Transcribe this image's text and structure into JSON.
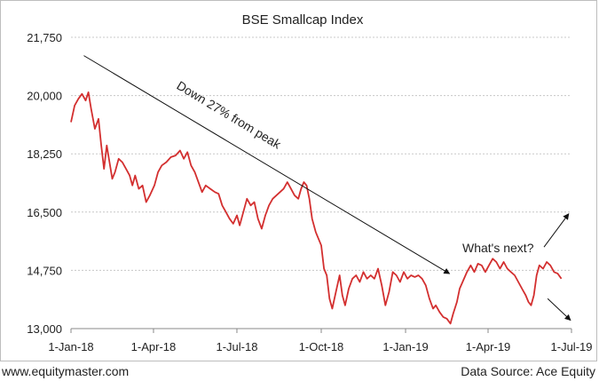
{
  "footer": {
    "left": "www.equitymaster.com",
    "right": "Data Source: Ace Equity"
  },
  "chart_data": {
    "type": "line",
    "title": "BSE Smallcap Index",
    "xlabel": "",
    "ylabel": "",
    "y_ticks": [
      "13,000",
      "14,750",
      "16,500",
      "18,250",
      "20,000",
      "21,750"
    ],
    "y_tick_values": [
      13000,
      14750,
      16500,
      18250,
      20000,
      21750
    ],
    "ylim": [
      13000,
      21750
    ],
    "x_ticks": [
      "1-Jan-18",
      "1-Apr-18",
      "1-Jul-18",
      "1-Oct-18",
      "1-Jan-19",
      "1-Apr-19",
      "1-Jul-19"
    ],
    "x_tick_dates": [
      "2018-01-01",
      "2018-04-01",
      "2018-07-01",
      "2018-10-01",
      "2019-01-01",
      "2019-04-01",
      "2019-07-01"
    ],
    "xlim": [
      "2018-01-01",
      "2019-07-01"
    ],
    "grid": "horizontal",
    "line_color": "#d32f2f",
    "series": [
      {
        "points": [
          [
            "2018-01-01",
            19200
          ],
          [
            "2018-01-05",
            19700
          ],
          [
            "2018-01-09",
            19900
          ],
          [
            "2018-01-13",
            20050
          ],
          [
            "2018-01-17",
            19850
          ],
          [
            "2018-01-20",
            20100
          ],
          [
            "2018-01-23",
            19600
          ],
          [
            "2018-01-27",
            19000
          ],
          [
            "2018-01-31",
            19300
          ],
          [
            "2018-02-03",
            18500
          ],
          [
            "2018-02-06",
            17800
          ],
          [
            "2018-02-09",
            18500
          ],
          [
            "2018-02-12",
            18000
          ],
          [
            "2018-02-15",
            17500
          ],
          [
            "2018-02-18",
            17700
          ],
          [
            "2018-02-22",
            18100
          ],
          [
            "2018-02-26",
            18000
          ],
          [
            "2018-03-02",
            17800
          ],
          [
            "2018-03-06",
            17600
          ],
          [
            "2018-03-09",
            17300
          ],
          [
            "2018-03-12",
            17600
          ],
          [
            "2018-03-16",
            17200
          ],
          [
            "2018-03-20",
            17300
          ],
          [
            "2018-03-24",
            16800
          ],
          [
            "2018-03-28",
            17000
          ],
          [
            "2018-04-02",
            17300
          ],
          [
            "2018-04-06",
            17700
          ],
          [
            "2018-04-10",
            17900
          ],
          [
            "2018-04-15",
            18000
          ],
          [
            "2018-04-20",
            18150
          ],
          [
            "2018-04-25",
            18200
          ],
          [
            "2018-04-30",
            18350
          ],
          [
            "2018-05-04",
            18100
          ],
          [
            "2018-05-08",
            18300
          ],
          [
            "2018-05-12",
            17900
          ],
          [
            "2018-05-16",
            17700
          ],
          [
            "2018-05-20",
            17400
          ],
          [
            "2018-05-24",
            17100
          ],
          [
            "2018-05-28",
            17300
          ],
          [
            "2018-06-02",
            17200
          ],
          [
            "2018-06-07",
            17100
          ],
          [
            "2018-06-11",
            17050
          ],
          [
            "2018-06-15",
            16700
          ],
          [
            "2018-06-19",
            16500
          ],
          [
            "2018-06-23",
            16300
          ],
          [
            "2018-06-27",
            16150
          ],
          [
            "2018-07-01",
            16400
          ],
          [
            "2018-07-04",
            16100
          ],
          [
            "2018-07-08",
            16500
          ],
          [
            "2018-07-12",
            16900
          ],
          [
            "2018-07-16",
            16700
          ],
          [
            "2018-07-20",
            16800
          ],
          [
            "2018-07-24",
            16300
          ],
          [
            "2018-07-28",
            16000
          ],
          [
            "2018-08-01",
            16400
          ],
          [
            "2018-08-05",
            16700
          ],
          [
            "2018-08-09",
            16900
          ],
          [
            "2018-08-13",
            17000
          ],
          [
            "2018-08-17",
            17100
          ],
          [
            "2018-08-21",
            17200
          ],
          [
            "2018-08-25",
            17400
          ],
          [
            "2018-08-29",
            17200
          ],
          [
            "2018-09-02",
            17000
          ],
          [
            "2018-09-06",
            16900
          ],
          [
            "2018-09-09",
            17200
          ],
          [
            "2018-09-12",
            17400
          ],
          [
            "2018-09-15",
            17300
          ],
          [
            "2018-09-18",
            16900
          ],
          [
            "2018-09-21",
            16300
          ],
          [
            "2018-09-25",
            15900
          ],
          [
            "2018-09-28",
            15700
          ],
          [
            "2018-10-01",
            15500
          ],
          [
            "2018-10-04",
            14800
          ],
          [
            "2018-10-07",
            14600
          ],
          [
            "2018-10-10",
            13900
          ],
          [
            "2018-10-13",
            13600
          ],
          [
            "2018-10-17",
            14100
          ],
          [
            "2018-10-21",
            14600
          ],
          [
            "2018-10-24",
            14000
          ],
          [
            "2018-10-27",
            13700
          ],
          [
            "2018-10-31",
            14200
          ],
          [
            "2018-11-04",
            14500
          ],
          [
            "2018-11-08",
            14600
          ],
          [
            "2018-11-12",
            14400
          ],
          [
            "2018-11-16",
            14700
          ],
          [
            "2018-11-20",
            14500
          ],
          [
            "2018-11-24",
            14600
          ],
          [
            "2018-11-28",
            14500
          ],
          [
            "2018-12-02",
            14800
          ],
          [
            "2018-12-06",
            14300
          ],
          [
            "2018-12-10",
            13700
          ],
          [
            "2018-12-14",
            14100
          ],
          [
            "2018-12-18",
            14700
          ],
          [
            "2018-12-22",
            14600
          ],
          [
            "2018-12-26",
            14400
          ],
          [
            "2018-12-30",
            14700
          ],
          [
            "2019-01-03",
            14500
          ],
          [
            "2019-01-07",
            14600
          ],
          [
            "2019-01-11",
            14550
          ],
          [
            "2019-01-15",
            14600
          ],
          [
            "2019-01-19",
            14500
          ],
          [
            "2019-01-23",
            14300
          ],
          [
            "2019-01-27",
            13900
          ],
          [
            "2019-01-31",
            13600
          ],
          [
            "2019-02-03",
            13700
          ],
          [
            "2019-02-07",
            13500
          ],
          [
            "2019-02-11",
            13350
          ],
          [
            "2019-02-15",
            13300
          ],
          [
            "2019-02-19",
            13150
          ],
          [
            "2019-02-22",
            13450
          ],
          [
            "2019-02-26",
            13800
          ],
          [
            "2019-03-01",
            14200
          ],
          [
            "2019-03-05",
            14450
          ],
          [
            "2019-03-09",
            14700
          ],
          [
            "2019-03-13",
            14900
          ],
          [
            "2019-03-17",
            14700
          ],
          [
            "2019-03-21",
            14950
          ],
          [
            "2019-03-25",
            14900
          ],
          [
            "2019-03-29",
            14700
          ],
          [
            "2019-04-02",
            14900
          ],
          [
            "2019-04-06",
            15100
          ],
          [
            "2019-04-10",
            15000
          ],
          [
            "2019-04-14",
            14800
          ],
          [
            "2019-04-18",
            15000
          ],
          [
            "2019-04-22",
            14800
          ],
          [
            "2019-04-26",
            14700
          ],
          [
            "2019-04-30",
            14600
          ],
          [
            "2019-05-04",
            14400
          ],
          [
            "2019-05-08",
            14200
          ],
          [
            "2019-05-12",
            14000
          ],
          [
            "2019-05-15",
            13800
          ],
          [
            "2019-05-18",
            13700
          ],
          [
            "2019-05-21",
            14000
          ],
          [
            "2019-05-24",
            14600
          ],
          [
            "2019-05-27",
            14900
          ],
          [
            "2019-05-31",
            14800
          ],
          [
            "2019-06-04",
            15000
          ],
          [
            "2019-06-08",
            14900
          ],
          [
            "2019-06-12",
            14700
          ],
          [
            "2019-06-16",
            14650
          ],
          [
            "2019-06-20",
            14500
          ]
        ]
      }
    ],
    "annotations": [
      {
        "text": "Down 27% from peak",
        "arrow_from": [
          "2018-01-15",
          21200
        ],
        "arrow_to": [
          "2019-02-18",
          14650
        ]
      },
      {
        "text": "What's next?",
        "arrow_up_from": [
          "2019-06-01",
          15450
        ],
        "arrow_up_to": [
          "2019-06-28",
          16450
        ],
        "arrow_down_from": [
          "2019-06-05",
          13900
        ],
        "arrow_down_to": [
          "2019-06-30",
          13250
        ]
      }
    ]
  }
}
